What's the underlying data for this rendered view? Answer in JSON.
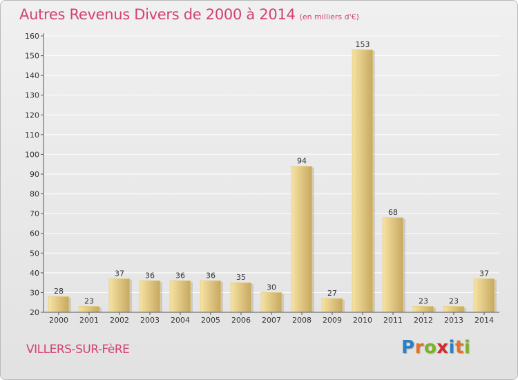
{
  "title": "Autres Revenus Divers de 2000 à 2014",
  "subtitle": "(en milliers d'€)",
  "commune": "VILLERS-SUR-FèRE",
  "logo": {
    "text": "Proxiti",
    "letters": [
      "P",
      "r",
      "o",
      "x",
      "i",
      "t",
      "i"
    ],
    "colors": [
      "#2b7fc4",
      "#e4702a",
      "#7ab51d",
      "#d22b2b",
      "#2b7fc4",
      "#e4702a",
      "#7ab51d"
    ]
  },
  "colors": {
    "title": "#d2426e",
    "bar_light": "#f7e3a2",
    "bar_dark": "#c6a860",
    "grid": "#ffffff",
    "axis": "#555555"
  },
  "chart_data": {
    "type": "bar",
    "title": "Autres Revenus Divers de 2000 à 2014",
    "subtitle": "(en milliers d'€)",
    "categories": [
      "2000",
      "2001",
      "2002",
      "2003",
      "2004",
      "2005",
      "2006",
      "2007",
      "2008",
      "2009",
      "2010",
      "2011",
      "2012",
      "2013",
      "2014"
    ],
    "values": [
      28,
      23,
      37,
      36,
      36,
      36,
      35,
      30,
      94,
      27,
      153,
      68,
      23,
      23,
      37
    ],
    "value_labels": [
      "28",
      "23",
      "37",
      "36",
      "36",
      "36",
      "35",
      "30",
      "94",
      "27",
      "153",
      "68",
      "23",
      "23",
      "37"
    ],
    "ylim": [
      20,
      160
    ],
    "yticks": [
      20,
      30,
      40,
      50,
      60,
      70,
      80,
      90,
      100,
      110,
      120,
      130,
      140,
      150,
      160
    ],
    "ytick_labels": [
      "20",
      "30",
      "40",
      "50",
      "60",
      "70",
      "80",
      "90",
      "100",
      "110",
      "120",
      "130",
      "140",
      "150",
      "160"
    ],
    "grid": true,
    "xlabel": "",
    "ylabel": ""
  }
}
